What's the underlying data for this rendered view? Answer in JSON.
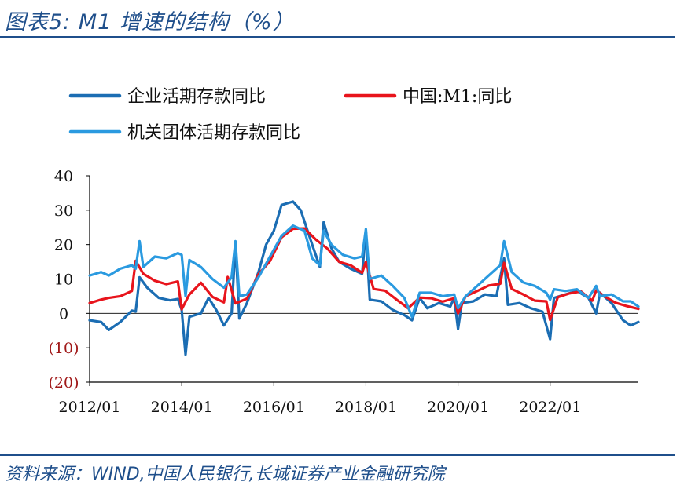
{
  "figure": {
    "title": "图表5: M1 增速的结构（%）",
    "source": "资料来源：WIND,中国人民银行,长城证券产业金融研究院"
  },
  "chart_data": {
    "type": "line",
    "x_tick_labels": [
      "2012/01",
      "2014/01",
      "2016/01",
      "2018/01",
      "2020/01",
      "2022/01"
    ],
    "y_tick_labels": [
      "40",
      "30",
      "20",
      "10",
      "0",
      "(10)",
      "(20)"
    ],
    "ylim": [
      -20,
      40
    ],
    "xlim": [
      "2012/01",
      "2023/12"
    ],
    "grid": false,
    "legend_position": "top",
    "series": [
      {
        "name": "企业活期存款同比",
        "color": "#1b6db3",
        "points": [
          [
            "2012/01",
            -2.0
          ],
          [
            "2012/04",
            -2.5
          ],
          [
            "2012/06",
            -4.8
          ],
          [
            "2012/09",
            -2.5
          ],
          [
            "2012/12",
            0.8
          ],
          [
            "2013/01",
            0.5
          ],
          [
            "2013/02",
            10.5
          ],
          [
            "2013/04",
            7.5
          ],
          [
            "2013/07",
            4.5
          ],
          [
            "2013/10",
            3.8
          ],
          [
            "2013/12",
            4.2
          ],
          [
            "2014/01",
            1.0
          ],
          [
            "2014/02",
            -12.0
          ],
          [
            "2014/03",
            -1.0
          ],
          [
            "2014/06",
            0.0
          ],
          [
            "2014/08",
            4.5
          ],
          [
            "2014/10",
            1.0
          ],
          [
            "2014/12",
            -3.5
          ],
          [
            "2015/02",
            0.0
          ],
          [
            "2015/03",
            20.5
          ],
          [
            "2015/04",
            -1.5
          ],
          [
            "2015/06",
            3.0
          ],
          [
            "2015/09",
            12.0
          ],
          [
            "2015/11",
            20.0
          ],
          [
            "2016/01",
            24.0
          ],
          [
            "2016/03",
            31.5
          ],
          [
            "2016/06",
            32.5
          ],
          [
            "2016/08",
            30.0
          ],
          [
            "2016/11",
            20.0
          ],
          [
            "2017/01",
            13.5
          ],
          [
            "2017/02",
            26.5
          ],
          [
            "2017/04",
            19.0
          ],
          [
            "2017/06",
            15.0
          ],
          [
            "2017/09",
            13.0
          ],
          [
            "2017/12",
            11.5
          ],
          [
            "2018/01",
            24.0
          ],
          [
            "2018/02",
            4.0
          ],
          [
            "2018/05",
            3.5
          ],
          [
            "2018/08",
            1.0
          ],
          [
            "2018/11",
            -0.5
          ],
          [
            "2019/01",
            -2.0
          ],
          [
            "2019/03",
            4.5
          ],
          [
            "2019/05",
            1.5
          ],
          [
            "2019/08",
            3.0
          ],
          [
            "2019/11",
            2.0
          ],
          [
            "2019/12",
            4.5
          ],
          [
            "2020/01",
            -4.5
          ],
          [
            "2020/02",
            3.0
          ],
          [
            "2020/05",
            3.5
          ],
          [
            "2020/08",
            5.5
          ],
          [
            "2020/11",
            5.0
          ],
          [
            "2021/01",
            16.0
          ],
          [
            "2021/02",
            2.5
          ],
          [
            "2021/05",
            3.0
          ],
          [
            "2021/08",
            1.5
          ],
          [
            "2021/11",
            0.5
          ],
          [
            "2022/01",
            -7.5
          ],
          [
            "2022/02",
            4.5
          ],
          [
            "2022/05",
            5.5
          ],
          [
            "2022/08",
            6.5
          ],
          [
            "2022/11",
            4.5
          ],
          [
            "2023/01",
            0.0
          ],
          [
            "2023/02",
            6.0
          ],
          [
            "2023/05",
            3.0
          ],
          [
            "2023/08",
            -2.0
          ],
          [
            "2023/10",
            -3.5
          ],
          [
            "2023/12",
            -2.5
          ]
        ]
      },
      {
        "name": "中国:M1:同比",
        "color": "#e8141c",
        "points": [
          [
            "2012/01",
            3.0
          ],
          [
            "2012/04",
            4.0
          ],
          [
            "2012/06",
            4.5
          ],
          [
            "2012/09",
            5.0
          ],
          [
            "2012/12",
            6.5
          ],
          [
            "2013/01",
            15.3
          ],
          [
            "2013/03",
            11.5
          ],
          [
            "2013/06",
            9.5
          ],
          [
            "2013/09",
            8.5
          ],
          [
            "2013/12",
            9.3
          ],
          [
            "2014/01",
            1.2
          ],
          [
            "2014/03",
            5.5
          ],
          [
            "2014/06",
            8.9
          ],
          [
            "2014/09",
            4.8
          ],
          [
            "2014/12",
            3.2
          ],
          [
            "2015/01",
            10.6
          ],
          [
            "2015/03",
            2.9
          ],
          [
            "2015/06",
            4.3
          ],
          [
            "2015/09",
            11.4
          ],
          [
            "2015/12",
            15.2
          ],
          [
            "2016/03",
            22.1
          ],
          [
            "2016/06",
            24.6
          ],
          [
            "2016/09",
            24.7
          ],
          [
            "2016/12",
            21.4
          ],
          [
            "2017/03",
            18.8
          ],
          [
            "2017/06",
            15.0
          ],
          [
            "2017/09",
            14.0
          ],
          [
            "2017/12",
            11.8
          ],
          [
            "2018/01",
            15.0
          ],
          [
            "2018/03",
            7.1
          ],
          [
            "2018/06",
            6.6
          ],
          [
            "2018/09",
            4.0
          ],
          [
            "2018/12",
            1.5
          ],
          [
            "2019/03",
            4.6
          ],
          [
            "2019/06",
            4.4
          ],
          [
            "2019/09",
            3.4
          ],
          [
            "2019/12",
            4.4
          ],
          [
            "2020/01",
            0.0
          ],
          [
            "2020/03",
            5.0
          ],
          [
            "2020/06",
            6.5
          ],
          [
            "2020/09",
            8.1
          ],
          [
            "2020/12",
            8.6
          ],
          [
            "2021/01",
            14.7
          ],
          [
            "2021/03",
            7.1
          ],
          [
            "2021/06",
            5.5
          ],
          [
            "2021/09",
            3.7
          ],
          [
            "2021/12",
            3.5
          ],
          [
            "2022/01",
            -1.9
          ],
          [
            "2022/03",
            4.7
          ],
          [
            "2022/06",
            5.8
          ],
          [
            "2022/09",
            6.4
          ],
          [
            "2022/12",
            3.7
          ],
          [
            "2023/01",
            6.7
          ],
          [
            "2023/03",
            5.1
          ],
          [
            "2023/06",
            3.1
          ],
          [
            "2023/09",
            2.1
          ],
          [
            "2023/12",
            1.3
          ]
        ]
      },
      {
        "name": "机关团体活期存款同比",
        "color": "#2a9ae0",
        "points": [
          [
            "2012/01",
            11.0
          ],
          [
            "2012/04",
            12.0
          ],
          [
            "2012/06",
            11.0
          ],
          [
            "2012/09",
            13.0
          ],
          [
            "2012/12",
            14.0
          ],
          [
            "2013/01",
            13.0
          ],
          [
            "2013/02",
            21.0
          ],
          [
            "2013/03",
            13.5
          ],
          [
            "2013/06",
            16.5
          ],
          [
            "2013/09",
            16.0
          ],
          [
            "2013/12",
            17.5
          ],
          [
            "2014/01",
            17.0
          ],
          [
            "2014/02",
            5.0
          ],
          [
            "2014/03",
            15.5
          ],
          [
            "2014/06",
            13.5
          ],
          [
            "2014/09",
            10.0
          ],
          [
            "2014/12",
            7.5
          ],
          [
            "2015/02",
            10.5
          ],
          [
            "2015/03",
            21.0
          ],
          [
            "2015/04",
            5.0
          ],
          [
            "2015/06",
            5.5
          ],
          [
            "2015/09",
            10.5
          ],
          [
            "2015/12",
            16.5
          ],
          [
            "2016/03",
            22.5
          ],
          [
            "2016/06",
            25.5
          ],
          [
            "2016/09",
            24.0
          ],
          [
            "2016/11",
            16.0
          ],
          [
            "2017/01",
            14.0
          ],
          [
            "2017/02",
            24.0
          ],
          [
            "2017/04",
            20.0
          ],
          [
            "2017/07",
            17.0
          ],
          [
            "2017/10",
            16.0
          ],
          [
            "2017/12",
            16.5
          ],
          [
            "2018/01",
            24.5
          ],
          [
            "2018/02",
            10.0
          ],
          [
            "2018/05",
            11.0
          ],
          [
            "2018/08",
            8.0
          ],
          [
            "2018/11",
            4.5
          ],
          [
            "2019/01",
            -1.0
          ],
          [
            "2019/03",
            6.0
          ],
          [
            "2019/06",
            6.0
          ],
          [
            "2019/09",
            5.0
          ],
          [
            "2019/12",
            5.5
          ],
          [
            "2020/01",
            1.5
          ],
          [
            "2020/03",
            5.0
          ],
          [
            "2020/06",
            8.0
          ],
          [
            "2020/09",
            11.0
          ],
          [
            "2020/12",
            14.0
          ],
          [
            "2021/01",
            21.0
          ],
          [
            "2021/03",
            12.0
          ],
          [
            "2021/06",
            9.0
          ],
          [
            "2021/09",
            8.0
          ],
          [
            "2021/12",
            6.0
          ],
          [
            "2022/01",
            4.0
          ],
          [
            "2022/02",
            7.0
          ],
          [
            "2022/05",
            6.5
          ],
          [
            "2022/08",
            7.0
          ],
          [
            "2022/11",
            4.5
          ],
          [
            "2023/01",
            8.0
          ],
          [
            "2023/02",
            5.0
          ],
          [
            "2023/05",
            5.5
          ],
          [
            "2023/08",
            3.5
          ],
          [
            "2023/10",
            3.5
          ],
          [
            "2023/12",
            2.0
          ]
        ]
      }
    ]
  }
}
